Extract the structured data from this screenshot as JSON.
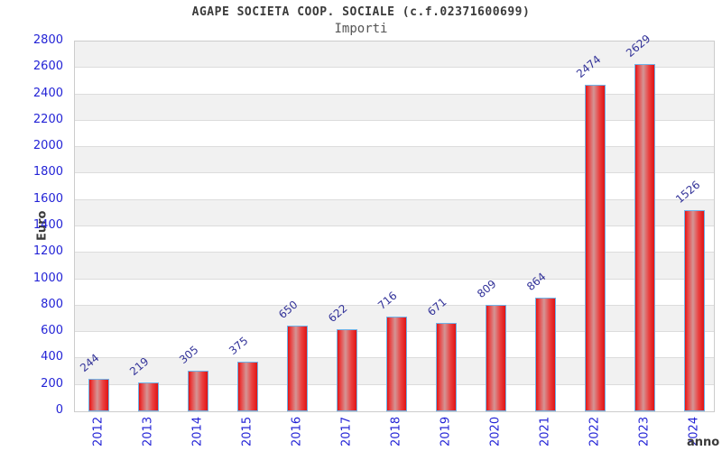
{
  "header": {
    "title": "AGAPE SOCIETA COOP. SOCIALE (c.f.02371600699)",
    "subtitle": "Importi"
  },
  "chart_data": {
    "type": "bar",
    "title": "AGAPE SOCIETA COOP. SOCIALE (c.f.02371600699)",
    "subtitle": "Importi",
    "xlabel": "anno",
    "ylabel": "Euro",
    "categories": [
      "2012",
      "2013",
      "2014",
      "2015",
      "2016",
      "2017",
      "2018",
      "2019",
      "2020",
      "2021",
      "2022",
      "2023",
      "2024"
    ],
    "values": [
      244,
      219,
      305,
      375,
      650,
      622,
      716,
      671,
      809,
      864,
      2474,
      2629,
      1526
    ],
    "ylim": [
      0,
      2800
    ],
    "ytick_step": 200,
    "ytick_labels": [
      "0",
      "200",
      "400",
      "600",
      "800",
      "1000",
      "1200",
      "1400",
      "1600",
      "1800",
      "2000",
      "2200",
      "2400",
      "2600",
      "2800"
    ],
    "grid": "alternating-horizontal-bands",
    "legend": "none",
    "colors": {
      "bar_red": "#e01414",
      "bar_red_bright": "#ea4040",
      "bar_highlight": "#d49595",
      "bar_border": "#6fb3e8",
      "tick_label_blue": "#2323d6",
      "value_label_blue": "#333399",
      "band_gray": "#f1f1f1",
      "band_white": "#ffffff",
      "gridline": "#dcdcdc",
      "plot_border": "#cccccc",
      "title_color": "#3a3a3a",
      "subtitle_color": "#555555",
      "axis_title_color": "#3a3a3a"
    }
  }
}
